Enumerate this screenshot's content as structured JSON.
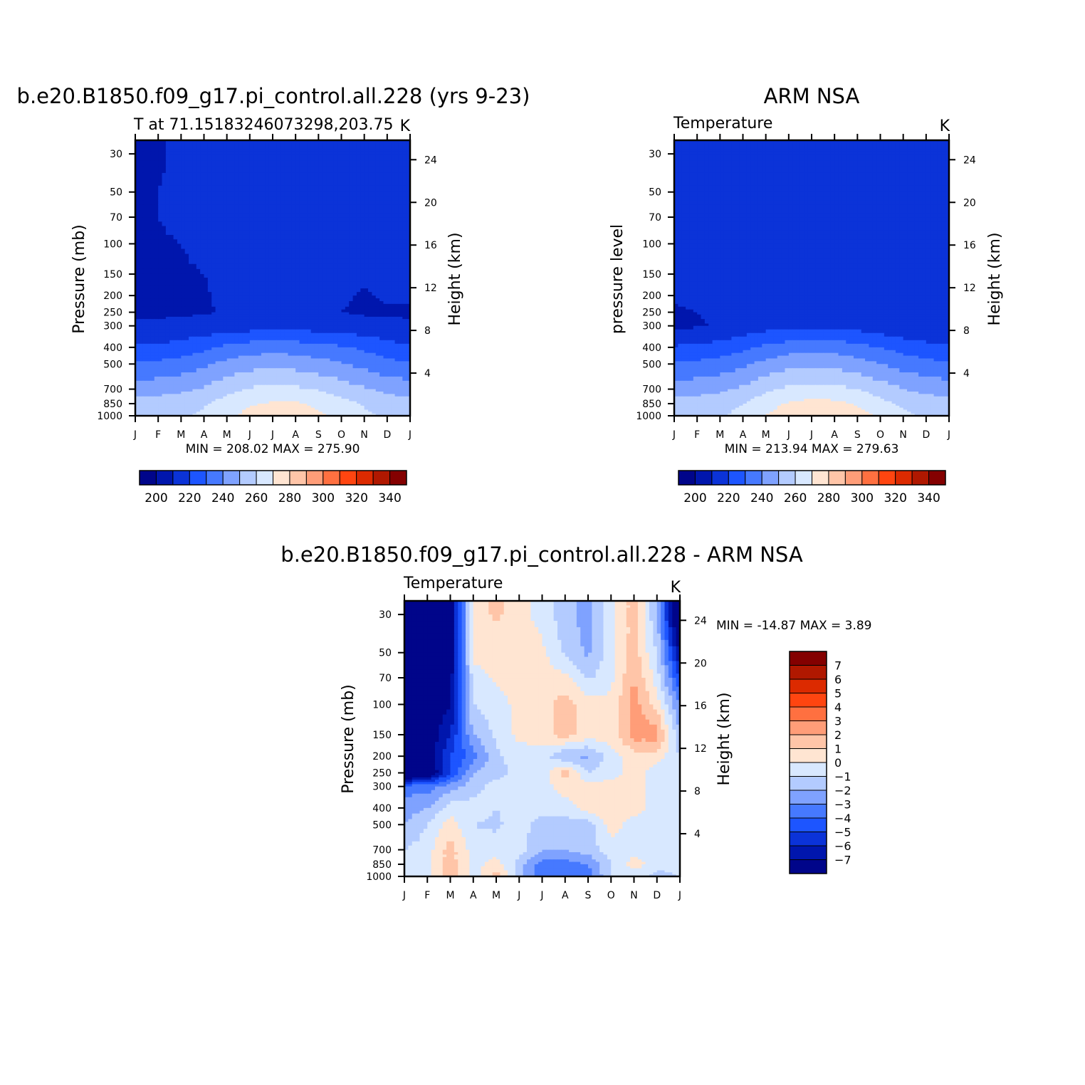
{
  "colors": {
    "temperature_scale": [
      "#00058a",
      "#0016ad",
      "#0b33d8",
      "#1d55ff",
      "#4679ff",
      "#7fa2ff",
      "#b3cbff",
      "#d8e8ff",
      "#ffe5d2",
      "#ffc5a8",
      "#ff9d78",
      "#ff7040",
      "#ff4510",
      "#dc2a00",
      "#b01800",
      "#840000"
    ],
    "difference_scale": [
      "#00058a",
      "#0016ad",
      "#0b33d8",
      "#1d55ff",
      "#4679ff",
      "#7fa2ff",
      "#b3cbff",
      "#d8e8ff",
      "#ffe5d2",
      "#ffc5a8",
      "#ff9d78",
      "#ff7040",
      "#ff4510",
      "#dc2a00",
      "#b01800",
      "#840000"
    ]
  },
  "panels": {
    "model": {
      "title": "b.e20.B1850.f09_g17.pi_control.all.228 (yrs 9-23)",
      "left_label": "T at 71.15183246073298,203.75",
      "right_label": "K",
      "minmax": "MIN =  208.02  MAX =  275.90",
      "y_left": "Pressure (mb)",
      "y_right": "Height (km)"
    },
    "obs": {
      "title": "ARM NSA",
      "left_label": "Temperature",
      "right_label": "K",
      "minmax": "MIN =  213.94  MAX =  279.63",
      "y_left": "pressure level",
      "y_right": "Height (km)"
    },
    "diff": {
      "title": "b.e20.B1850.f09_g17.pi_control.all.228 - ARM NSA",
      "left_label": "Temperature",
      "right_label": "K",
      "minmax": "MIN = -14.87  MAX =     3.89",
      "y_left": "Pressure (mb)",
      "y_right": "Height (km)"
    }
  },
  "axes": {
    "months": [
      "J",
      "F",
      "M",
      "A",
      "M",
      "J",
      "J",
      "A",
      "S",
      "O",
      "N",
      "D",
      "J"
    ],
    "pressure_ticks": [
      "30",
      "50",
      "70",
      "100",
      "150",
      "200",
      "250",
      "300",
      "400",
      "500",
      "700",
      "850",
      "1000"
    ],
    "height_ticks": [
      "24",
      "20",
      "16",
      "12",
      "8",
      "4"
    ]
  },
  "colorbars": {
    "temperature_labels": [
      "200",
      "220",
      "240",
      "260",
      "280",
      "300",
      "320",
      "340"
    ],
    "difference_labels": [
      "7",
      "6",
      "5",
      "4",
      "3",
      "2",
      "1",
      "0",
      "-1",
      "-2",
      "-3",
      "-4",
      "-5",
      "-6",
      "-7"
    ]
  },
  "chart_data": [
    {
      "type": "heatmap",
      "panel": "model",
      "title": "b.e20.B1850.f09_g17.pi_control.all.228 (yrs 9-23)",
      "variable": "T",
      "units": "K",
      "x": [
        "J",
        "F",
        "M",
        "A",
        "M",
        "J",
        "J",
        "A",
        "S",
        "O",
        "N",
        "D",
        "J"
      ],
      "y": [
        30,
        50,
        70,
        100,
        150,
        200,
        250,
        300,
        400,
        500,
        700,
        850,
        1000
      ],
      "ylim": [
        1000,
        30
      ],
      "levels": [
        200,
        210,
        220,
        230,
        240,
        250,
        260,
        270,
        280,
        290,
        300,
        310,
        320,
        330,
        340
      ],
      "values": [
        [
          205,
          208,
          214,
          214,
          214,
          214,
          213,
          214,
          214,
          212,
          212,
          212,
          211
        ],
        [
          206,
          210,
          212,
          214,
          214,
          214,
          214,
          214,
          214,
          212,
          211,
          211,
          211
        ],
        [
          208,
          210,
          212,
          214,
          214,
          214,
          214,
          214,
          214,
          213,
          211,
          211,
          211
        ],
        [
          209,
          209,
          210,
          212,
          214,
          214,
          214,
          214,
          214,
          213,
          212,
          212,
          212
        ],
        [
          209,
          209,
          209,
          210,
          213,
          214,
          214,
          214,
          213,
          212,
          212,
          213,
          213
        ],
        [
          209,
          209,
          209,
          209,
          212,
          214,
          214,
          214,
          213,
          211,
          209,
          211,
          211
        ],
        [
          209,
          209,
          209,
          209,
          211,
          214,
          214,
          214,
          214,
          210,
          209,
          209,
          209
        ],
        [
          211,
          211,
          212,
          214,
          214,
          215,
          216,
          216,
          215,
          214,
          213,
          212,
          211
        ],
        [
          221,
          222,
          224,
          227,
          232,
          235,
          236,
          235,
          233,
          231,
          228,
          224,
          221
        ],
        [
          231,
          232,
          234,
          238,
          243,
          246,
          247,
          246,
          244,
          241,
          237,
          233,
          231
        ],
        [
          245,
          246,
          248,
          251,
          257,
          261,
          263,
          262,
          259,
          255,
          251,
          247,
          245
        ],
        [
          254,
          255,
          256,
          259,
          264,
          269,
          271,
          271,
          268,
          263,
          259,
          256,
          254
        ],
        [
          256,
          257,
          258,
          262,
          268,
          273,
          276,
          275,
          272,
          266,
          262,
          258,
          256
        ]
      ],
      "min": 208.02,
      "max": 275.9
    },
    {
      "type": "heatmap",
      "panel": "obs",
      "title": "ARM NSA",
      "variable": "Temperature",
      "units": "K",
      "x": [
        "J",
        "F",
        "M",
        "A",
        "M",
        "J",
        "J",
        "A",
        "S",
        "O",
        "N",
        "D",
        "J"
      ],
      "y": [
        30,
        50,
        70,
        100,
        150,
        200,
        250,
        300,
        400,
        500,
        700,
        850,
        1000
      ],
      "ylim": [
        1000,
        30
      ],
      "levels": [
        200,
        210,
        220,
        230,
        240,
        250,
        260,
        270,
        280,
        290,
        300,
        310,
        320,
        330,
        340
      ],
      "values": [
        [
          215,
          215,
          216,
          216,
          216,
          216,
          219,
          216,
          216,
          213,
          213,
          213,
          215
        ],
        [
          215,
          215,
          216,
          216,
          216,
          216,
          216,
          216,
          216,
          213,
          212,
          212,
          214
        ],
        [
          215,
          215,
          216,
          216,
          216,
          216,
          216,
          216,
          216,
          214,
          212,
          212,
          213
        ],
        [
          215,
          215,
          216,
          216,
          216,
          216,
          216,
          216,
          216,
          215,
          212,
          212,
          212
        ],
        [
          214,
          215,
          216,
          216,
          216,
          216,
          216,
          216,
          216,
          216,
          212,
          212,
          212
        ],
        [
          212,
          214,
          215,
          216,
          216,
          216,
          216,
          216,
          216,
          216,
          213,
          211,
          211
        ],
        [
          208,
          210,
          212,
          215,
          216,
          216,
          216,
          216,
          216,
          214,
          211,
          211,
          211
        ],
        [
          208,
          209,
          211,
          214,
          216,
          217,
          217,
          217,
          216,
          214,
          212,
          211,
          211
        ],
        [
          221,
          222,
          224,
          227,
          232,
          235,
          237,
          236,
          233,
          230,
          226,
          223,
          221
        ],
        [
          231,
          232,
          234,
          238,
          243,
          247,
          248,
          247,
          244,
          240,
          236,
          233,
          231
        ],
        [
          245,
          246,
          248,
          252,
          258,
          262,
          264,
          263,
          260,
          255,
          250,
          247,
          245
        ],
        [
          254,
          255,
          256,
          260,
          266,
          271,
          273,
          272,
          269,
          263,
          258,
          256,
          254
        ],
        [
          257,
          258,
          259,
          263,
          270,
          276,
          279,
          278,
          274,
          268,
          262,
          259,
          257
        ]
      ],
      "min": 213.94,
      "max": 279.63
    },
    {
      "type": "heatmap",
      "panel": "diff",
      "title": "b.e20.B1850.f09_g17.pi_control.all.228 - ARM NSA",
      "variable": "Temperature",
      "units": "K",
      "x": [
        "J",
        "F",
        "M",
        "A",
        "M",
        "J",
        "J",
        "A",
        "S",
        "O",
        "N",
        "D",
        "J"
      ],
      "y": [
        30,
        50,
        70,
        100,
        150,
        200,
        250,
        300,
        400,
        500,
        700,
        850,
        1000
      ],
      "ylim": [
        1000,
        30
      ],
      "levels": [
        -7,
        -6,
        -5,
        -4,
        -3,
        -2,
        -1,
        0,
        1,
        2,
        3,
        4,
        5,
        6,
        7
      ],
      "values": [
        [
          -10,
          -8,
          -8,
          0.5,
          1.2,
          0.5,
          -0.5,
          -1.5,
          -2.5,
          -0.5,
          1.5,
          -2,
          -10
        ],
        [
          -10,
          -8,
          -8,
          0.3,
          0.5,
          0.5,
          0.3,
          -1.2,
          -2.2,
          -0.5,
          1.5,
          -1,
          -7
        ],
        [
          -10,
          -8,
          -7.5,
          -0.5,
          0.2,
          0.5,
          0.5,
          0.3,
          -1.2,
          -0.3,
          2,
          -0.5,
          -5
        ],
        [
          -10,
          -8,
          -7,
          -1,
          -0.5,
          0.3,
          0.5,
          1.5,
          0.5,
          0.3,
          2.5,
          0.5,
          -3
        ],
        [
          -10,
          -8,
          -6,
          -2,
          -0.8,
          0.3,
          0.5,
          1.5,
          0.5,
          0.5,
          2.5,
          2.5,
          -2
        ],
        [
          -10,
          -8,
          -5,
          -3.5,
          -1.2,
          -0.5,
          -0.5,
          -2,
          -2.2,
          -0.5,
          0.5,
          0.5,
          -1
        ],
        [
          -10,
          -8.5,
          -5,
          -2,
          -1.5,
          -0.5,
          -0.5,
          1.5,
          -1,
          -0.5,
          0.5,
          -0.5,
          -1
        ],
        [
          -3.5,
          -3.5,
          -2.5,
          -1.5,
          -0.5,
          -0.5,
          -0.5,
          0.5,
          0.5,
          0.5,
          0.5,
          -0.5,
          -1
        ],
        [
          -2.5,
          -2,
          -0.5,
          -0.5,
          -1,
          -0.5,
          -0.5,
          -0.5,
          0.5,
          1,
          0.5,
          -0.5,
          -1
        ],
        [
          -2,
          -1,
          0.5,
          -1,
          -1.2,
          -0.5,
          -1.5,
          -1.5,
          -1.5,
          0.5,
          -0.5,
          -0.5,
          -1
        ],
        [
          -1,
          -0.5,
          1.5,
          -0.5,
          -0.5,
          -0.5,
          -2,
          -2,
          -1.5,
          -0.5,
          -0.5,
          -0.5,
          -1
        ],
        [
          -0.5,
          -0.5,
          1.5,
          -0.5,
          0.5,
          -1.5,
          -3.5,
          -3.5,
          -3,
          -1,
          0.5,
          -0.5,
          -0.5
        ],
        [
          -0.5,
          -0.5,
          2,
          -0.5,
          1.5,
          -1.5,
          -4,
          -4,
          -3.5,
          -1,
          -0.5,
          -1.5,
          -1
        ]
      ],
      "min": -14.87,
      "max": 3.89
    }
  ]
}
